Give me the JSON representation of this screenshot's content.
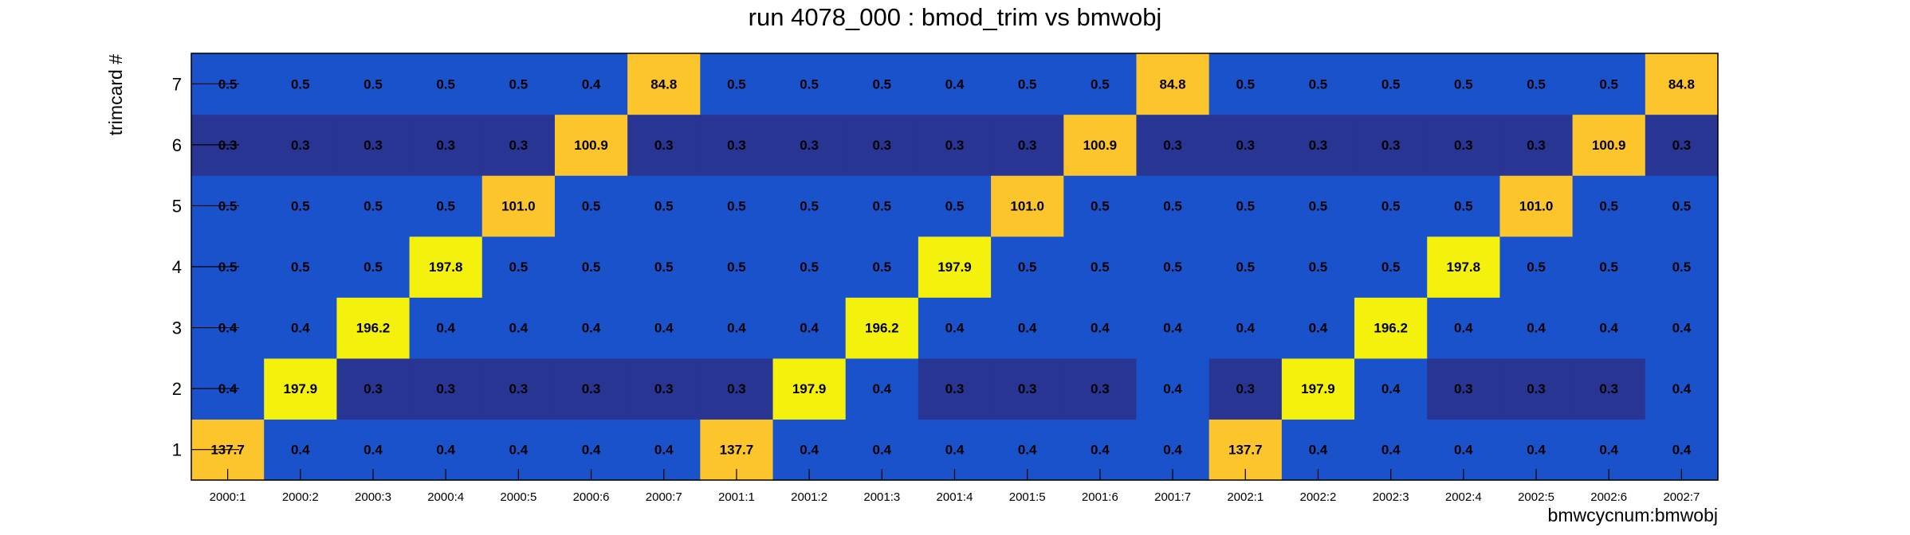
{
  "chart_data": {
    "type": "heatmap",
    "title": "run 4078_000 : bmod_trim vs bmwobj",
    "xlabel": "bmwcycnum:bmwobj",
    "ylabel": "trimcard #",
    "x_categories": [
      "2000:1",
      "2000:2",
      "2000:3",
      "2000:4",
      "2000:5",
      "2000:6",
      "2000:7",
      "2001:1",
      "2001:2",
      "2001:3",
      "2001:4",
      "2001:5",
      "2001:6",
      "2001:7",
      "2002:1",
      "2002:2",
      "2002:3",
      "2002:4",
      "2002:5",
      "2002:6",
      "2002:7"
    ],
    "y_categories": [
      "1",
      "2",
      "3",
      "4",
      "5",
      "6",
      "7"
    ],
    "values": [
      [
        137.7,
        0.4,
        0.4,
        0.4,
        0.4,
        0.4,
        0.4,
        137.7,
        0.4,
        0.4,
        0.4,
        0.4,
        0.4,
        0.4,
        137.7,
        0.4,
        0.4,
        0.4,
        0.4,
        0.4,
        0.4
      ],
      [
        0.4,
        197.9,
        0.3,
        0.3,
        0.3,
        0.3,
        0.3,
        0.3,
        197.9,
        0.4,
        0.3,
        0.3,
        0.3,
        0.4,
        0.3,
        197.9,
        0.4,
        0.3,
        0.3,
        0.3,
        0.4
      ],
      [
        0.4,
        0.4,
        196.2,
        0.4,
        0.4,
        0.4,
        0.4,
        0.4,
        0.4,
        196.2,
        0.4,
        0.4,
        0.4,
        0.4,
        0.4,
        0.4,
        196.2,
        0.4,
        0.4,
        0.4,
        0.4
      ],
      [
        0.5,
        0.5,
        0.5,
        197.8,
        0.5,
        0.5,
        0.5,
        0.5,
        0.5,
        0.5,
        197.9,
        0.5,
        0.5,
        0.5,
        0.5,
        0.5,
        0.5,
        197.8,
        0.5,
        0.5,
        0.5
      ],
      [
        0.5,
        0.5,
        0.5,
        0.5,
        101.0,
        0.5,
        0.5,
        0.5,
        0.5,
        0.5,
        0.5,
        101.0,
        0.5,
        0.5,
        0.5,
        0.5,
        0.5,
        0.5,
        101.0,
        0.5,
        0.5
      ],
      [
        0.3,
        0.3,
        0.3,
        0.3,
        0.3,
        100.9,
        0.3,
        0.3,
        0.3,
        0.3,
        0.3,
        0.3,
        100.9,
        0.3,
        0.3,
        0.3,
        0.3,
        0.3,
        0.3,
        100.9,
        0.3
      ],
      [
        0.5,
        0.5,
        0.5,
        0.5,
        0.5,
        0.4,
        84.8,
        0.5,
        0.5,
        0.5,
        0.4,
        0.5,
        0.5,
        84.8,
        0.5,
        0.5,
        0.5,
        0.5,
        0.5,
        0.5,
        84.8
      ]
    ],
    "colors": {
      "low_dark": "#283593",
      "low": "#1a52cc",
      "mid": "#fdc52c",
      "high": "#f4f20c",
      "frame": "#000000"
    }
  }
}
